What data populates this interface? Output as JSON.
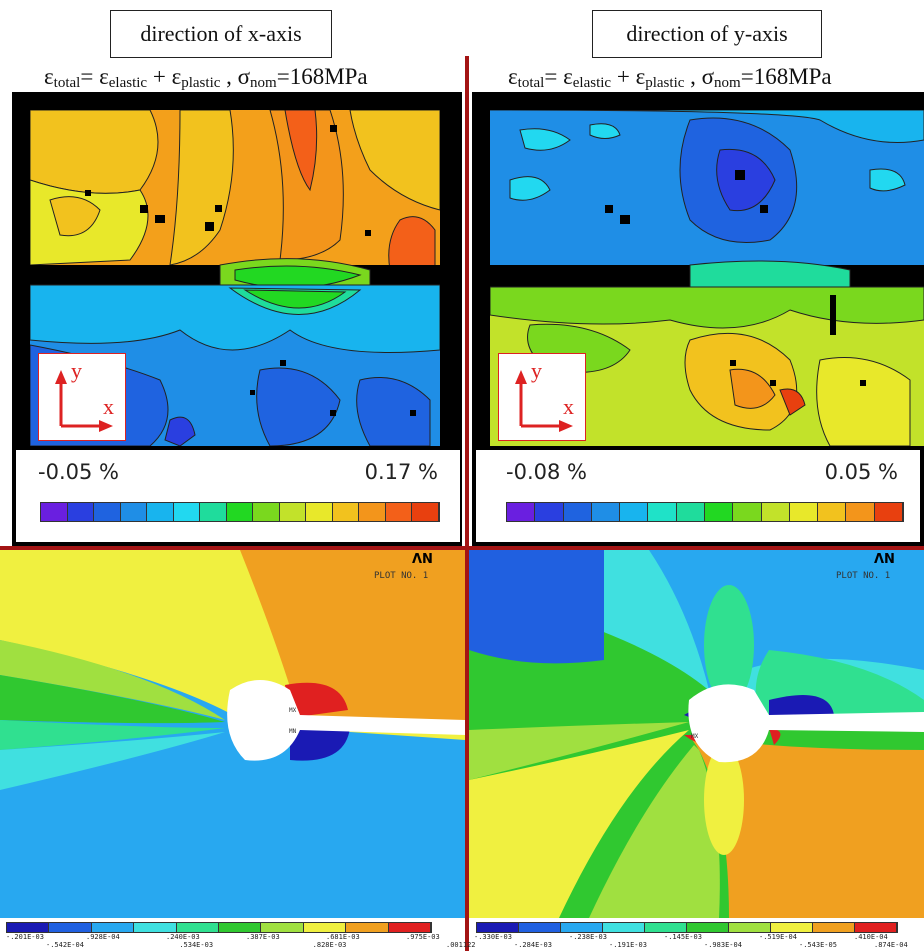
{
  "left_top": {
    "title": "direction of x-axis",
    "formula": {
      "eps": "ε",
      "total": "total",
      "eq": "= ",
      "elastic": "elastic",
      "plus": " + ",
      "plastic": "plastic",
      "sep": " , ",
      "sigma": "σ",
      "nom": "nom",
      "value": "=168MPa"
    },
    "legend_min": "-0.05 %",
    "legend_max": "0.17 %",
    "legend_colors": [
      "#6a1fe0",
      "#2a3fe0",
      "#1f63e0",
      "#1f8ee6",
      "#18b4ee",
      "#22d8f0",
      "#1fdc9c",
      "#22d822",
      "#7ad81e",
      "#c2e22a",
      "#e8e82a",
      "#f2c21e",
      "#f3951b",
      "#f36019",
      "#e8400f"
    ],
    "axis_y": "y",
    "axis_x": "x"
  },
  "right_top": {
    "title": "direction of y-axis",
    "legend_min": "-0.08 %",
    "legend_max": "0.05 %",
    "legend_colors": [
      "#6a1fe0",
      "#2a3fe0",
      "#1f63e0",
      "#1f8ee6",
      "#18b4ee",
      "#1fe2c8",
      "#1fdc9c",
      "#22d822",
      "#7ad81e",
      "#c2e22a",
      "#e8e82a",
      "#f2c21e",
      "#f3951b",
      "#e8400f"
    ],
    "axis_y": "y",
    "axis_x": "x"
  },
  "left_bottom": {
    "logo": "ΛN",
    "plot_no": "PLOT NO.   1",
    "mx1": "MX",
    "mx2": "MN",
    "legend_colors": [
      "#1a1ab4",
      "#2060e0",
      "#28a8f0",
      "#40e0e0",
      "#30e090",
      "#30c830",
      "#a0e040",
      "#f0f040",
      "#f0a020",
      "#e02020"
    ],
    "legend_labels_top": [
      "-.201E-03",
      ".928E-04",
      ".240E-03",
      ".387E-03",
      ".681E-03",
      ".975E-03"
    ],
    "legend_labels_bottom": [
      "-.542E-04",
      ".534E-03",
      ".828E-03",
      ".001122"
    ]
  },
  "right_bottom": {
    "logo": "ΛN",
    "plot_no": "PLOT NO.   1",
    "mx": "MX",
    "legend_colors": [
      "#1a1ab4",
      "#2060e0",
      "#28a8f0",
      "#40e0e0",
      "#30e090",
      "#30c830",
      "#a0e040",
      "#f0f040",
      "#f0a020",
      "#e02020"
    ],
    "legend_labels_top": [
      "-.330E-03",
      "-.238E-03",
      "-.145E-03",
      "-.519E-04",
      ".410E-04"
    ],
    "legend_labels_bottom": [
      "-.284E-03",
      "-.191E-03",
      "-.983E-04",
      "-.543E-05",
      ".874E-04"
    ]
  }
}
